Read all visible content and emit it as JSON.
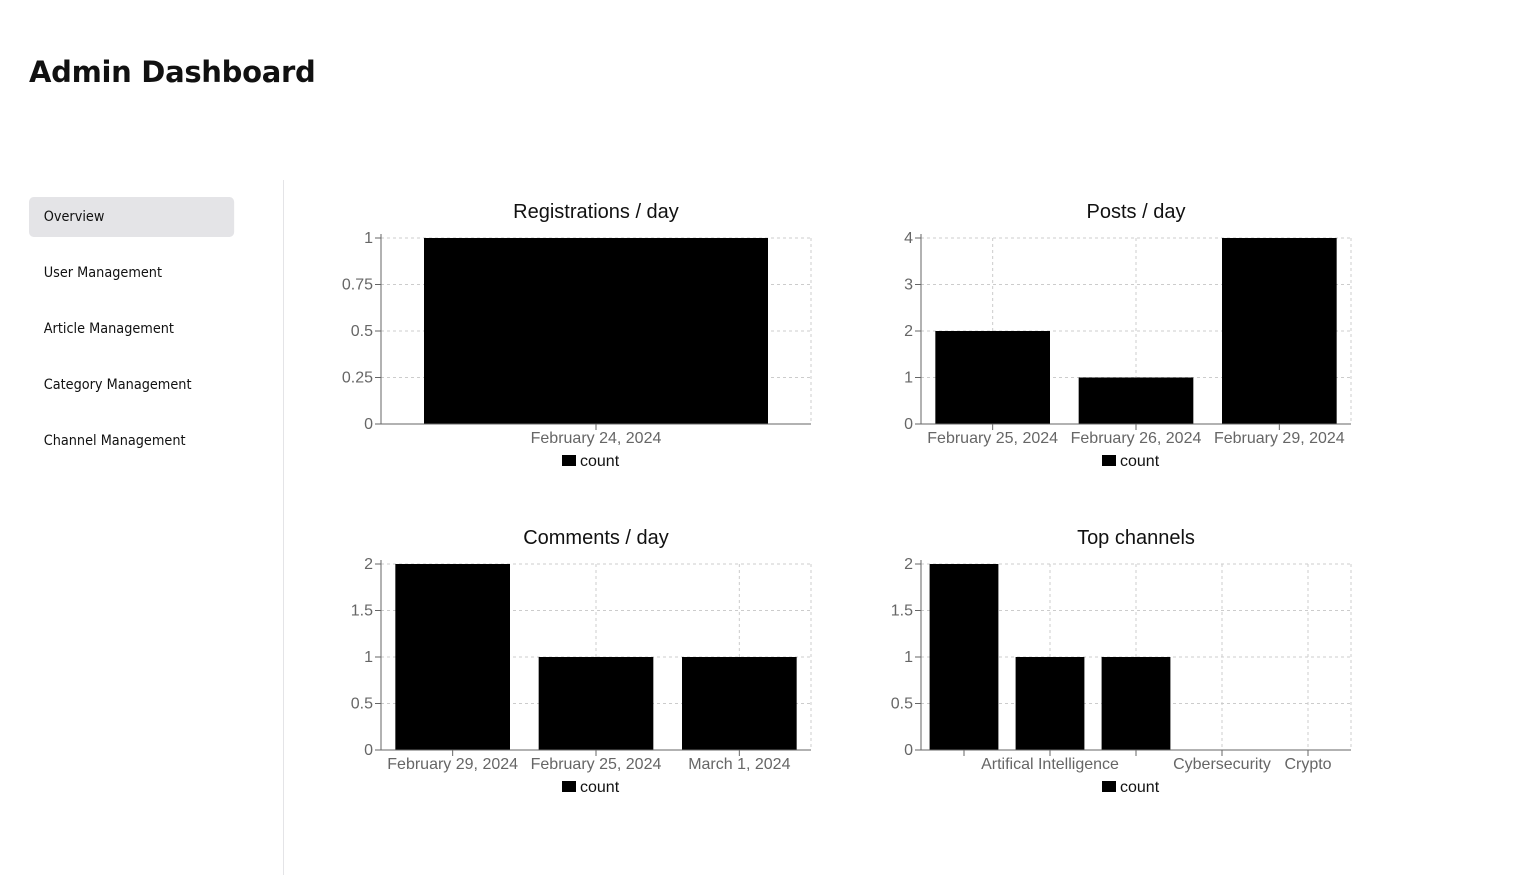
{
  "header": {
    "title": "Admin Dashboard"
  },
  "sidebar": {
    "items": [
      {
        "label": "Overview",
        "active": true
      },
      {
        "label": "User Management",
        "active": false
      },
      {
        "label": "Article Management",
        "active": false
      },
      {
        "label": "Category Management",
        "active": false
      },
      {
        "label": "Channel Management",
        "active": false
      }
    ]
  },
  "colors": {
    "bar": "#000000",
    "grid": "#cccccc",
    "axis": "#666666",
    "active_nav": "#e4e4e7"
  },
  "chart_data": [
    {
      "type": "bar",
      "title": "Registrations / day",
      "categories": [
        "February 24, 2024"
      ],
      "series": [
        {
          "name": "count",
          "values": [
            1
          ]
        }
      ],
      "yticks": [
        0,
        0.25,
        0.5,
        0.75,
        1
      ],
      "ylim": [
        0,
        1
      ],
      "grid": true,
      "legend": "bottom"
    },
    {
      "type": "bar",
      "title": "Posts / day",
      "categories": [
        "February 25, 2024",
        "February 26, 2024",
        "February 29, 2024"
      ],
      "series": [
        {
          "name": "count",
          "values": [
            2,
            1,
            4
          ]
        }
      ],
      "yticks": [
        0,
        1,
        2,
        3,
        4
      ],
      "ylim": [
        0,
        4
      ],
      "grid": true,
      "legend": "bottom"
    },
    {
      "type": "bar",
      "title": "Comments / day",
      "categories": [
        "February 29, 2024",
        "February 25, 2024",
        "March 1, 2024"
      ],
      "series": [
        {
          "name": "count",
          "values": [
            2,
            1,
            1
          ]
        }
      ],
      "yticks": [
        0,
        0.5,
        1,
        1.5,
        2
      ],
      "ylim": [
        0,
        2
      ],
      "grid": true,
      "legend": "bottom"
    },
    {
      "type": "bar",
      "title": "Top channels",
      "categories": [
        "",
        "Artifical Intelligence",
        "",
        "Cybersecurity",
        "Crypto"
      ],
      "series": [
        {
          "name": "count",
          "values": [
            2,
            1,
            1,
            0,
            0
          ]
        }
      ],
      "yticks": [
        0,
        0.5,
        1,
        1.5,
        2
      ],
      "ylim": [
        0,
        2
      ],
      "grid": true,
      "legend": "bottom"
    }
  ]
}
